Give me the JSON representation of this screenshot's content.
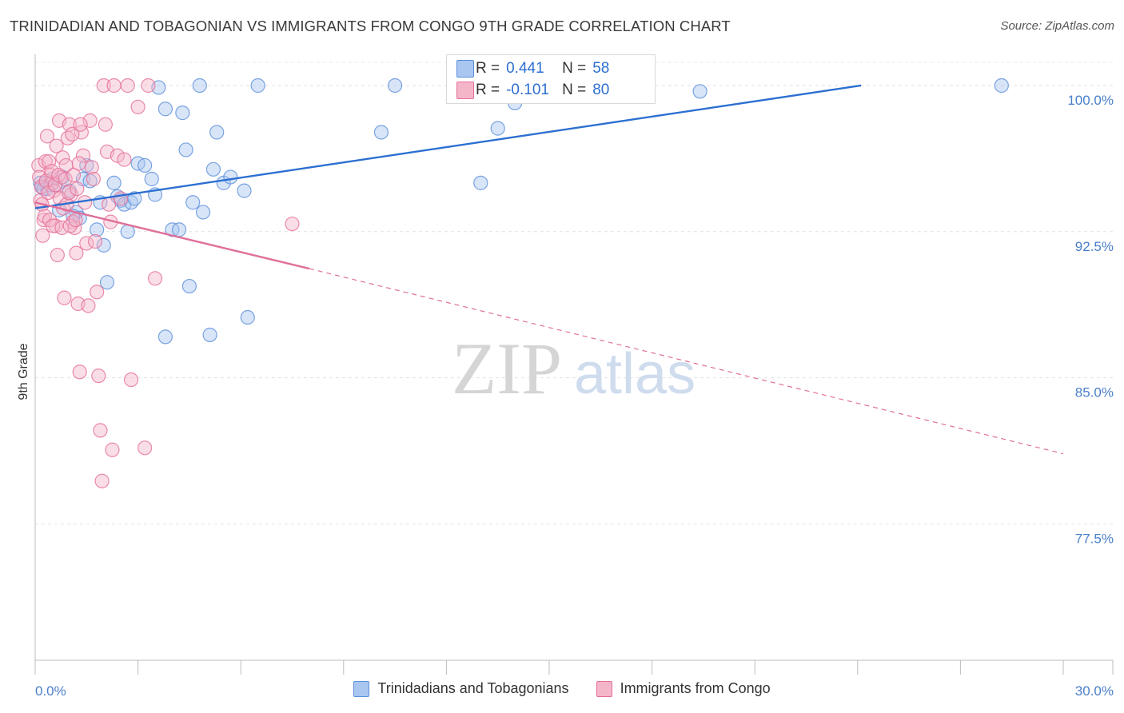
{
  "title": "TRINIDADIAN AND TOBAGONIAN VS IMMIGRANTS FROM CONGO 9TH GRADE CORRELATION CHART",
  "source": "Source: ZipAtlas.com",
  "watermark": {
    "zip": "ZIP",
    "atlas": "atlas"
  },
  "legend": [
    {
      "r_label": "R =",
      "r_value": "0.441",
      "n_label": "N =",
      "n_value": "58"
    },
    {
      "r_label": "R =",
      "r_value": "-0.101",
      "n_label": "N =",
      "n_value": "80"
    }
  ],
  "colors": {
    "blue": "#5b8fdb",
    "blue_fill": "#a9c6f0",
    "pink": "#e56f98",
    "pink_fill": "#f4b5c9",
    "blue_line": "#2c6fd1",
    "pink_line": "#e0709a"
  },
  "chart_data": {
    "type": "scatter",
    "title": "TRINIDADIAN AND TOBAGONIAN VS IMMIGRANTS FROM CONGO 9TH GRADE CORRELATION CHART",
    "xlabel": "",
    "ylabel": "9th Grade",
    "xlim": [
      0,
      30
    ],
    "ylim": [
      70.5,
      101.6
    ],
    "x_tick_labels": [
      "0.0%",
      "30.0%"
    ],
    "y_ticks": [
      {
        "value": 100.0,
        "label": "100.0%"
      },
      {
        "value": 92.5,
        "label": "92.5%"
      },
      {
        "value": 85.0,
        "label": "85.0%"
      },
      {
        "value": 77.5,
        "label": "77.5%"
      }
    ],
    "series": [
      {
        "name": "Trinidadians and Tobagonians",
        "color": "blue",
        "trend": {
          "x": [
            0,
            24.1
          ],
          "y": [
            93.7,
            100.0
          ],
          "dashed_to": null
        },
        "points": [
          [
            0.2,
            94.8
          ],
          [
            0.3,
            95.0
          ],
          [
            0.35,
            94.7
          ],
          [
            0.5,
            95.2
          ],
          [
            0.6,
            94.9
          ],
          [
            0.8,
            95.3
          ],
          [
            1.0,
            94.6
          ],
          [
            1.2,
            93.5
          ],
          [
            1.3,
            93.2
          ],
          [
            1.4,
            95.2
          ],
          [
            1.5,
            95.9
          ],
          [
            1.6,
            95.1
          ],
          [
            1.8,
            92.6
          ],
          [
            1.9,
            94.0
          ],
          [
            2.0,
            91.8
          ],
          [
            2.1,
            89.9
          ],
          [
            2.3,
            95.0
          ],
          [
            2.4,
            94.3
          ],
          [
            2.5,
            94.1
          ],
          [
            2.6,
            93.9
          ],
          [
            2.7,
            92.5
          ],
          [
            2.8,
            94.0
          ],
          [
            2.9,
            94.2
          ],
          [
            3.0,
            96.0
          ],
          [
            3.2,
            95.9
          ],
          [
            3.4,
            95.2
          ],
          [
            3.5,
            94.4
          ],
          [
            3.6,
            99.9
          ],
          [
            3.8,
            87.1
          ],
          [
            3.8,
            98.8
          ],
          [
            4.0,
            92.6
          ],
          [
            4.2,
            92.6
          ],
          [
            4.3,
            98.6
          ],
          [
            4.4,
            96.7
          ],
          [
            4.5,
            89.7
          ],
          [
            4.6,
            94.0
          ],
          [
            4.8,
            100.0
          ],
          [
            4.9,
            93.5
          ],
          [
            5.1,
            87.2
          ],
          [
            5.2,
            95.7
          ],
          [
            5.3,
            97.6
          ],
          [
            5.5,
            95.0
          ],
          [
            5.7,
            95.3
          ],
          [
            6.1,
            94.6
          ],
          [
            6.2,
            88.1
          ],
          [
            6.5,
            100.0
          ],
          [
            10.1,
            97.6
          ],
          [
            10.5,
            100.0
          ],
          [
            13.0,
            95.0
          ],
          [
            13.5,
            97.8
          ],
          [
            14.0,
            99.1
          ],
          [
            19.4,
            99.7
          ],
          [
            28.2,
            100.0
          ],
          [
            0.15,
            95.0
          ],
          [
            0.25,
            94.7
          ],
          [
            0.45,
            94.9
          ],
          [
            0.7,
            93.6
          ],
          [
            1.1,
            93.3
          ]
        ]
      },
      {
        "name": "Immigrants from Congo",
        "color": "pink",
        "trend": {
          "x": [
            0,
            8.0
          ],
          "y": [
            94.0,
            90.6
          ],
          "dashed_to": {
            "x": 30.0,
            "y": 81.1
          }
        },
        "points": [
          [
            0.1,
            95.9
          ],
          [
            0.15,
            94.1
          ],
          [
            0.2,
            93.9
          ],
          [
            0.25,
            93.1
          ],
          [
            0.3,
            96.1
          ],
          [
            0.35,
            97.4
          ],
          [
            0.4,
            96.1
          ],
          [
            0.45,
            95.4
          ],
          [
            0.5,
            95.0
          ],
          [
            0.55,
            94.6
          ],
          [
            0.6,
            92.8
          ],
          [
            0.65,
            91.3
          ],
          [
            0.7,
            98.2
          ],
          [
            0.75,
            95.3
          ],
          [
            0.8,
            96.3
          ],
          [
            0.85,
            89.1
          ],
          [
            0.9,
            95.9
          ],
          [
            0.95,
            97.3
          ],
          [
            1.0,
            98.0
          ],
          [
            1.05,
            94.4
          ],
          [
            1.1,
            93.0
          ],
          [
            1.15,
            92.7
          ],
          [
            1.2,
            91.4
          ],
          [
            1.25,
            88.8
          ],
          [
            1.3,
            85.3
          ],
          [
            1.35,
            97.6
          ],
          [
            1.4,
            96.4
          ],
          [
            1.45,
            94.0
          ],
          [
            1.5,
            91.9
          ],
          [
            1.55,
            88.7
          ],
          [
            1.6,
            98.2
          ],
          [
            1.65,
            95.8
          ],
          [
            1.7,
            95.2
          ],
          [
            1.75,
            92.0
          ],
          [
            1.8,
            89.4
          ],
          [
            1.85,
            85.1
          ],
          [
            1.9,
            82.3
          ],
          [
            1.95,
            79.7
          ],
          [
            2.0,
            100.0
          ],
          [
            2.05,
            98.0
          ],
          [
            2.1,
            96.6
          ],
          [
            2.15,
            93.9
          ],
          [
            2.2,
            93.0
          ],
          [
            2.25,
            81.3
          ],
          [
            2.3,
            100.0
          ],
          [
            2.4,
            96.4
          ],
          [
            2.5,
            94.2
          ],
          [
            2.6,
            96.2
          ],
          [
            2.7,
            100.0
          ],
          [
            2.8,
            84.9
          ],
          [
            3.0,
            98.9
          ],
          [
            3.2,
            81.4
          ],
          [
            3.3,
            100.0
          ],
          [
            3.5,
            90.1
          ],
          [
            7.5,
            92.9
          ],
          [
            0.12,
            95.3
          ],
          [
            0.18,
            94.8
          ],
          [
            0.22,
            92.3
          ],
          [
            0.28,
            93.3
          ],
          [
            0.32,
            95.1
          ],
          [
            0.38,
            94.5
          ],
          [
            0.42,
            93.1
          ],
          [
            0.48,
            95.6
          ],
          [
            0.52,
            92.8
          ],
          [
            0.58,
            94.9
          ],
          [
            0.62,
            96.9
          ],
          [
            0.68,
            95.4
          ],
          [
            0.72,
            94.2
          ],
          [
            0.78,
            92.7
          ],
          [
            0.82,
            93.7
          ],
          [
            0.88,
            95.2
          ],
          [
            0.92,
            93.9
          ],
          [
            0.98,
            94.5
          ],
          [
            1.02,
            92.8
          ],
          [
            1.08,
            97.5
          ],
          [
            1.12,
            95.4
          ],
          [
            1.18,
            93.1
          ],
          [
            1.22,
            94.7
          ],
          [
            1.28,
            96.0
          ],
          [
            1.32,
            98.0
          ]
        ]
      }
    ]
  }
}
